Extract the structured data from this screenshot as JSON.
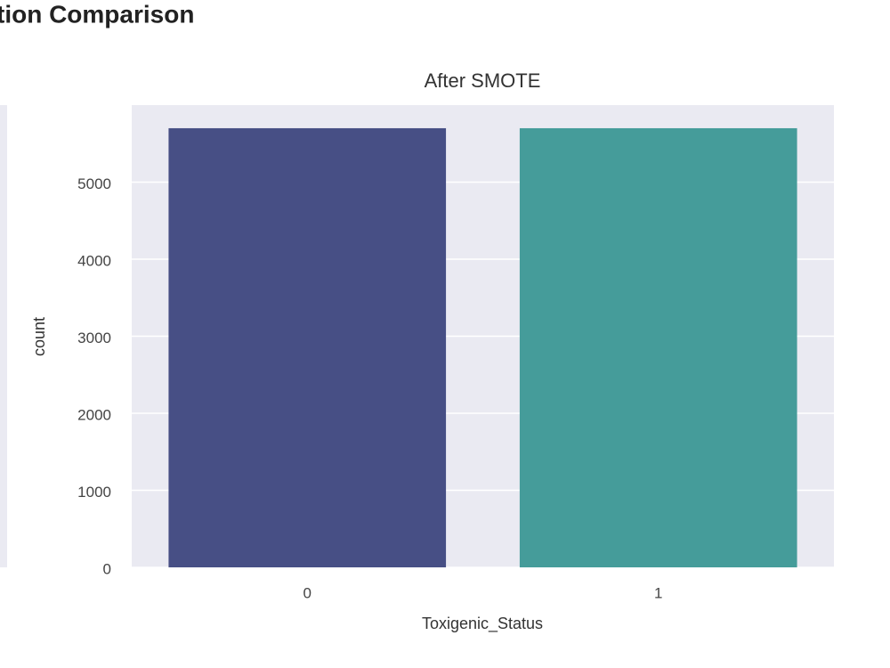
{
  "figure_title": "tion Comparison",
  "chart_data": {
    "type": "bar",
    "title": "After SMOTE",
    "x_label": "Toxigenic_Status",
    "y_label": "count",
    "categories": [
      "0",
      "1"
    ],
    "values": [
      5700,
      5700
    ],
    "colors": [
      "#474f85",
      "#459c9a"
    ],
    "ylim": [
      0,
      6000
    ],
    "yticks": [
      0,
      1000,
      2000,
      3000,
      4000,
      5000
    ],
    "grid": true
  }
}
